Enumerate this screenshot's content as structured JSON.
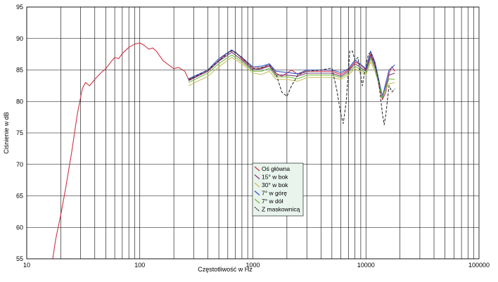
{
  "chart_data": {
    "type": "line",
    "xlabel": "Częstotliwość w Hz",
    "ylabel": "Ciśnienie w dB",
    "xscale": "log",
    "xlim": [
      10,
      100000
    ],
    "ylim": [
      55,
      95
    ],
    "x_ticks": [
      "10",
      "100",
      "1000",
      "10000",
      "100000"
    ],
    "y_ticks": [
      "55",
      "60",
      "65",
      "70",
      "75",
      "80",
      "85",
      "90",
      "95"
    ],
    "grid": true,
    "legend_position": "center",
    "series": [
      {
        "name": "Oś główna",
        "color": "#cc3344",
        "points": [
          [
            17,
            55
          ],
          [
            18,
            58
          ],
          [
            20,
            62
          ],
          [
            22,
            66
          ],
          [
            25,
            72
          ],
          [
            28,
            78
          ],
          [
            31,
            82
          ],
          [
            33,
            83
          ],
          [
            36,
            82.5
          ],
          [
            40,
            83.5
          ],
          [
            45,
            84.5
          ],
          [
            50,
            85.2
          ],
          [
            55,
            86.2
          ],
          [
            60,
            87
          ],
          [
            65,
            86.8
          ],
          [
            70,
            87.6
          ],
          [
            80,
            88.6
          ],
          [
            90,
            89.1
          ],
          [
            100,
            89.3
          ],
          [
            110,
            88.9
          ],
          [
            120,
            88.3
          ],
          [
            130,
            88.5
          ],
          [
            140,
            88
          ],
          [
            160,
            86.5
          ],
          [
            180,
            85.8
          ],
          [
            200,
            85.2
          ],
          [
            220,
            85.4
          ],
          [
            250,
            84.8
          ],
          [
            270,
            83.5
          ],
          [
            300,
            83.8
          ],
          [
            400,
            84.8
          ],
          [
            500,
            86.5
          ],
          [
            600,
            87.8
          ],
          [
            650,
            88
          ],
          [
            700,
            87.9
          ],
          [
            800,
            86.8
          ],
          [
            1000,
            85.3
          ],
          [
            1200,
            85.3
          ],
          [
            1400,
            85.8
          ],
          [
            1600,
            84.5
          ],
          [
            1800,
            84
          ],
          [
            2000,
            84.5
          ],
          [
            2200,
            85
          ],
          [
            2500,
            84.3
          ],
          [
            3000,
            84.8
          ],
          [
            4000,
            84.8
          ],
          [
            5000,
            84.8
          ],
          [
            6000,
            84.3
          ],
          [
            7000,
            85
          ],
          [
            8000,
            86.3
          ],
          [
            9000,
            85.8
          ],
          [
            10000,
            85
          ],
          [
            11000,
            87.5
          ],
          [
            12000,
            86
          ],
          [
            13000,
            82.5
          ],
          [
            14000,
            80.3
          ],
          [
            15000,
            81.5
          ],
          [
            16000,
            84.5
          ],
          [
            17000,
            85.5
          ],
          [
            18000,
            84.8
          ]
        ]
      },
      {
        "name": "15° w bok",
        "color": "#7a3a7a",
        "points": [
          [
            270,
            83.3
          ],
          [
            400,
            84.8
          ],
          [
            500,
            86.4
          ],
          [
            650,
            87.8
          ],
          [
            800,
            86.6
          ],
          [
            1000,
            85
          ],
          [
            1200,
            85.2
          ],
          [
            1400,
            85.6
          ],
          [
            1600,
            84.2
          ],
          [
            2000,
            84.2
          ],
          [
            2500,
            84
          ],
          [
            3000,
            84.5
          ],
          [
            5000,
            84.5
          ],
          [
            6000,
            84
          ],
          [
            7000,
            84.8
          ],
          [
            8000,
            86
          ],
          [
            10000,
            84.8
          ],
          [
            11000,
            87.2
          ],
          [
            12000,
            85.6
          ],
          [
            14000,
            80.5
          ],
          [
            16000,
            84.2
          ],
          [
            18000,
            84.5
          ]
        ]
      },
      {
        "name": "30° w bok",
        "color": "#c8c060",
        "points": [
          [
            270,
            82.5
          ],
          [
            400,
            84
          ],
          [
            500,
            85.5
          ],
          [
            650,
            87
          ],
          [
            800,
            86
          ],
          [
            1000,
            84.5
          ],
          [
            1200,
            84.3
          ],
          [
            1400,
            84.8
          ],
          [
            1600,
            83.5
          ],
          [
            2000,
            83.5
          ],
          [
            2500,
            83.2
          ],
          [
            3000,
            83.8
          ],
          [
            5000,
            83.8
          ],
          [
            6000,
            83.5
          ],
          [
            7000,
            84.2
          ],
          [
            8000,
            85.2
          ],
          [
            10000,
            84.2
          ],
          [
            11000,
            86.3
          ],
          [
            12000,
            84.8
          ],
          [
            14000,
            81
          ],
          [
            16000,
            82.8
          ],
          [
            18000,
            83
          ]
        ]
      },
      {
        "name": "7° w górę",
        "color": "#3355cc",
        "points": [
          [
            270,
            83.6
          ],
          [
            400,
            85
          ],
          [
            500,
            86.8
          ],
          [
            650,
            88.2
          ],
          [
            800,
            87
          ],
          [
            1000,
            85.5
          ],
          [
            1200,
            85.6
          ],
          [
            1400,
            86
          ],
          [
            1600,
            84.8
          ],
          [
            2000,
            84.6
          ],
          [
            2500,
            84.4
          ],
          [
            3000,
            85
          ],
          [
            5000,
            85
          ],
          [
            6000,
            84.6
          ],
          [
            7000,
            85.2
          ],
          [
            8000,
            86.6
          ],
          [
            10000,
            85.2
          ],
          [
            11000,
            88
          ],
          [
            12000,
            86.3
          ],
          [
            14000,
            80.8
          ],
          [
            16000,
            85
          ],
          [
            18000,
            85.8
          ]
        ]
      },
      {
        "name": "7° w dół",
        "color": "#77bb44",
        "points": [
          [
            270,
            83
          ],
          [
            400,
            84.5
          ],
          [
            500,
            86
          ],
          [
            650,
            87.4
          ],
          [
            800,
            86.3
          ],
          [
            1000,
            84.8
          ],
          [
            1200,
            84.8
          ],
          [
            1400,
            85.3
          ],
          [
            1600,
            83.9
          ],
          [
            2000,
            83.9
          ],
          [
            2500,
            83.6
          ],
          [
            3000,
            84.2
          ],
          [
            5000,
            84.2
          ],
          [
            6000,
            83.8
          ],
          [
            7000,
            84.5
          ],
          [
            8000,
            85.6
          ],
          [
            10000,
            84.5
          ],
          [
            11000,
            86.8
          ],
          [
            12000,
            85.2
          ],
          [
            14000,
            80.6
          ],
          [
            16000,
            83.6
          ],
          [
            18000,
            83.5
          ]
        ]
      },
      {
        "name": "Z maskownicą",
        "color": "#333333",
        "dashed": true,
        "points": [
          [
            270,
            83.4
          ],
          [
            400,
            85
          ],
          [
            500,
            86.5
          ],
          [
            650,
            88.1
          ],
          [
            800,
            87
          ],
          [
            1000,
            85.2
          ],
          [
            1200,
            85.4
          ],
          [
            1400,
            85.8
          ],
          [
            1600,
            84.5
          ],
          [
            1800,
            81.5
          ],
          [
            2000,
            80.8
          ],
          [
            2200,
            82.5
          ],
          [
            2500,
            84.2
          ],
          [
            3000,
            84.8
          ],
          [
            4000,
            85
          ],
          [
            5000,
            85.3
          ],
          [
            5500,
            82
          ],
          [
            6000,
            78
          ],
          [
            6300,
            76.5
          ],
          [
            6700,
            80
          ],
          [
            7200,
            88
          ],
          [
            7600,
            88
          ],
          [
            8000,
            86.5
          ],
          [
            8500,
            87
          ],
          [
            9000,
            84
          ],
          [
            9300,
            82.5
          ],
          [
            9800,
            85
          ],
          [
            10500,
            87.5
          ],
          [
            11000,
            87.8
          ],
          [
            12000,
            86
          ],
          [
            13000,
            83
          ],
          [
            14000,
            78
          ],
          [
            14500,
            76.3
          ],
          [
            15000,
            78
          ],
          [
            16000,
            82.5
          ],
          [
            17000,
            81.5
          ],
          [
            18000,
            82
          ]
        ]
      }
    ]
  }
}
